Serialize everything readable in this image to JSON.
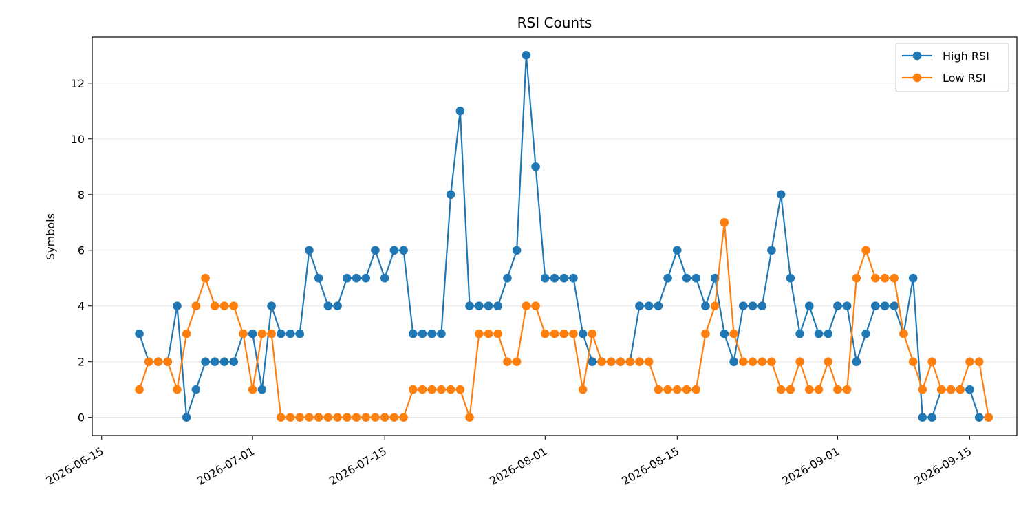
{
  "chart_data": {
    "type": "line",
    "title": "RSI Counts",
    "xlabel": "",
    "ylabel": "Symbols",
    "x_tick_labels": [
      "2026-06-15",
      "2026-07-01",
      "2026-07-15",
      "2026-08-01",
      "2026-08-15",
      "2026-09-01",
      "2026-09-15"
    ],
    "y_ticks": [
      0,
      2,
      4,
      6,
      8,
      10,
      12
    ],
    "ylim": [
      -0.65,
      13.65
    ],
    "xlim": [
      "2026-06-14",
      "2026-09-20"
    ],
    "grid": "horizontal",
    "legend_position": "top-right",
    "x": [
      "2026-06-19",
      "2026-06-20",
      "2026-06-21",
      "2026-06-22",
      "2026-06-23",
      "2026-06-24",
      "2026-06-25",
      "2026-06-26",
      "2026-06-27",
      "2026-06-28",
      "2026-06-29",
      "2026-06-30",
      "2026-07-01",
      "2026-07-02",
      "2026-07-03",
      "2026-07-04",
      "2026-07-05",
      "2026-07-06",
      "2026-07-07",
      "2026-07-08",
      "2026-07-09",
      "2026-07-10",
      "2026-07-11",
      "2026-07-12",
      "2026-07-13",
      "2026-07-14",
      "2026-07-15",
      "2026-07-16",
      "2026-07-17",
      "2026-07-18",
      "2026-07-19",
      "2026-07-20",
      "2026-07-21",
      "2026-07-22",
      "2026-07-23",
      "2026-07-24",
      "2026-07-25",
      "2026-07-26",
      "2026-07-27",
      "2026-07-28",
      "2026-07-29",
      "2026-07-30",
      "2026-07-31",
      "2026-08-01",
      "2026-08-02",
      "2026-08-03",
      "2026-08-04",
      "2026-08-05",
      "2026-08-06",
      "2026-08-07",
      "2026-08-08",
      "2026-08-09",
      "2026-08-10",
      "2026-08-11",
      "2026-08-12",
      "2026-08-13",
      "2026-08-14",
      "2026-08-15",
      "2026-08-16",
      "2026-08-17",
      "2026-08-18",
      "2026-08-19",
      "2026-08-20",
      "2026-08-21",
      "2026-08-22",
      "2026-08-23",
      "2026-08-24",
      "2026-08-25",
      "2026-08-26",
      "2026-08-27",
      "2026-08-28",
      "2026-08-29",
      "2026-08-30",
      "2026-08-31",
      "2026-09-01",
      "2026-09-02",
      "2026-09-03",
      "2026-09-04",
      "2026-09-05",
      "2026-09-06",
      "2026-09-07",
      "2026-09-08",
      "2026-09-09",
      "2026-09-10",
      "2026-09-11",
      "2026-09-12",
      "2026-09-13",
      "2026-09-14",
      "2026-09-15",
      "2026-09-16",
      "2026-09-17"
    ],
    "series": [
      {
        "name": "High RSI",
        "color": "#1f77b4",
        "values": [
          3,
          2,
          2,
          2,
          4,
          0,
          1,
          2,
          2,
          2,
          2,
          3,
          3,
          1,
          4,
          3,
          3,
          3,
          6,
          5,
          4,
          4,
          5,
          5,
          5,
          6,
          5,
          6,
          6,
          3,
          3,
          3,
          3,
          8,
          11,
          4,
          4,
          4,
          4,
          5,
          6,
          13,
          9,
          5,
          5,
          5,
          5,
          3,
          2,
          2,
          2,
          2,
          2,
          4,
          4,
          4,
          5,
          6,
          5,
          5,
          4,
          5,
          3,
          2,
          4,
          4,
          4,
          6,
          8,
          5,
          3,
          4,
          3,
          3,
          4,
          4,
          2,
          3,
          4,
          4,
          4,
          3,
          5,
          0,
          0,
          1,
          1,
          1,
          1,
          0,
          0
        ]
      },
      {
        "name": "Low RSI",
        "color": "#ff7f0e",
        "values": [
          1,
          2,
          2,
          2,
          1,
          3,
          4,
          5,
          4,
          4,
          4,
          3,
          1,
          3,
          3,
          0,
          0,
          0,
          0,
          0,
          0,
          0,
          0,
          0,
          0,
          0,
          0,
          0,
          0,
          1,
          1,
          1,
          1,
          1,
          1,
          0,
          3,
          3,
          3,
          2,
          2,
          4,
          4,
          3,
          3,
          3,
          3,
          1,
          3,
          2,
          2,
          2,
          2,
          2,
          2,
          1,
          1,
          1,
          1,
          1,
          3,
          4,
          7,
          3,
          2,
          2,
          2,
          2,
          1,
          1,
          2,
          1,
          1,
          2,
          1,
          1,
          5,
          6,
          5,
          5,
          5,
          3,
          2,
          1,
          2,
          1,
          1,
          1,
          2,
          2,
          0
        ]
      }
    ]
  }
}
